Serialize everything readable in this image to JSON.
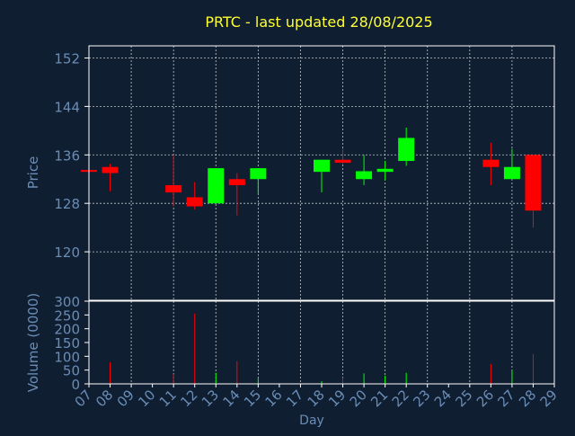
{
  "chart_data": {
    "type": "candlestick",
    "title": "PRTC - last updated 28/08/2025",
    "xlabel": "Day",
    "price_axis": {
      "label": "Price",
      "ylim": [
        112,
        154
      ],
      "ticks": [
        120,
        128,
        136,
        144,
        152
      ]
    },
    "volume_axis": {
      "label": "Volume (0000)",
      "ylim": [
        0,
        300
      ],
      "ticks": [
        0,
        50,
        100,
        150,
        200,
        250,
        300
      ]
    },
    "x_ticks": [
      "07",
      "08",
      "09",
      "10",
      "11",
      "12",
      "13",
      "14",
      "15",
      "16",
      "17",
      "18",
      "19",
      "20",
      "21",
      "22",
      "23",
      "24",
      "25",
      "26",
      "27",
      "28",
      "29"
    ],
    "grid": true,
    "candles": [
      {
        "day": 7,
        "open": 133.5,
        "close": 133.2,
        "high": 133.5,
        "low": 133.2,
        "volume": 0
      },
      {
        "day": 8,
        "open": 134.0,
        "close": 133.0,
        "high": 134.5,
        "low": 130.0,
        "volume": 78
      },
      {
        "day": 11,
        "open": 131.0,
        "close": 129.8,
        "high": 136.0,
        "low": 127.5,
        "volume": 35
      },
      {
        "day": 12,
        "open": 129.0,
        "close": 127.5,
        "high": 131.5,
        "low": 127.0,
        "volume": 255
      },
      {
        "day": 13,
        "open": 128.0,
        "close": 133.8,
        "high": 133.8,
        "low": 128.0,
        "volume": 40
      },
      {
        "day": 14,
        "open": 132.0,
        "close": 131.0,
        "high": 133.0,
        "low": 126.0,
        "volume": 82
      },
      {
        "day": 15,
        "open": 132.0,
        "close": 133.8,
        "high": 133.8,
        "low": 129.5,
        "volume": 20
      },
      {
        "day": 18,
        "open": 133.2,
        "close": 135.2,
        "high": 135.2,
        "low": 129.8,
        "volume": 10
      },
      {
        "day": 19,
        "open": 135.2,
        "close": 134.7,
        "high": 137.0,
        "low": 134.5,
        "volume": 22
      },
      {
        "day": 20,
        "open": 132.0,
        "close": 133.3,
        "high": 136.0,
        "low": 131.0,
        "volume": 38
      },
      {
        "day": 21,
        "open": 133.2,
        "close": 133.7,
        "high": 135.0,
        "low": 131.8,
        "volume": 30
      },
      {
        "day": 22,
        "open": 135.0,
        "close": 138.8,
        "high": 140.5,
        "low": 134.2,
        "volume": 40
      },
      {
        "day": 26,
        "open": 135.2,
        "close": 134.0,
        "high": 138.0,
        "low": 131.0,
        "volume": 72
      },
      {
        "day": 27,
        "open": 132.0,
        "close": 134.0,
        "high": 137.0,
        "low": 132.0,
        "volume": 50
      },
      {
        "day": 28,
        "open": 136.0,
        "close": 126.8,
        "high": 136.0,
        "low": 124.0,
        "volume": 108
      }
    ]
  },
  "colors": {
    "background": "#0f1e31",
    "frame": "#ffffff",
    "grid": "#ffffff",
    "title": "#ffff33",
    "axis_label": "#6a8db7",
    "tick_label": "#6a8db7",
    "up": "#00ff00",
    "down": "#ff0000"
  }
}
